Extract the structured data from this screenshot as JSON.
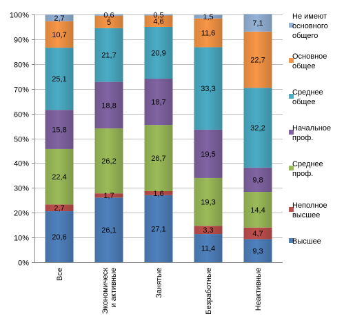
{
  "chart_data": {
    "type": "bar",
    "stacked": true,
    "normalized": true,
    "categories": [
      "Все",
      "Экономическ и активные",
      "Занятые",
      "Безработные",
      "Неактивные"
    ],
    "ylim": [
      0,
      100
    ],
    "yticks": [
      "0%",
      "10%",
      "20%",
      "30%",
      "40%",
      "50%",
      "60%",
      "70%",
      "80%",
      "90%",
      "100%"
    ],
    "legend_position": "right",
    "series": [
      {
        "name": "Высшее",
        "color": "#4f81bd",
        "values": [
          20.6,
          26.1,
          27.1,
          11.4,
          9.3
        ],
        "labels": [
          "20,6",
          "26,1",
          "27,1",
          "11,4",
          "9,3"
        ]
      },
      {
        "name": "Неполное высшее",
        "color": "#c0504d",
        "values": [
          2.7,
          1.7,
          1.6,
          3.3,
          4.7
        ],
        "labels": [
          "2,7",
          "1,7",
          "1,6",
          "3,3",
          "4,7"
        ]
      },
      {
        "name": "Среднее проф.",
        "color": "#9bbb59",
        "values": [
          22.4,
          26.2,
          26.7,
          19.3,
          14.4
        ],
        "labels": [
          "22,4",
          "26,2",
          "26,7",
          "19,3",
          "14,4"
        ]
      },
      {
        "name": "Начальное проф.",
        "color": "#8064a2",
        "values": [
          15.8,
          18.8,
          18.7,
          19.5,
          9.8
        ],
        "labels": [
          "15,8",
          "18,8",
          "18,7",
          "19,5",
          "9,8"
        ]
      },
      {
        "name": "Среднее общее",
        "color": "#4bacc6",
        "values": [
          25.1,
          21.7,
          20.9,
          33.3,
          32.2
        ],
        "labels": [
          "25,1",
          "21,7",
          "20,9",
          "33,3",
          "32,2"
        ]
      },
      {
        "name": "Основное общее",
        "color": "#f79646",
        "values": [
          10.7,
          5,
          4.6,
          11.6,
          22.7
        ],
        "labels": [
          "10,7",
          "5",
          "4,6",
          "11,6",
          "22,7"
        ]
      },
      {
        "name": "Не имеют основного общего",
        "color": "#95b3d7",
        "values": [
          2.7,
          0.6,
          0.5,
          1.5,
          7.1
        ],
        "labels": [
          "2,7",
          "0,6",
          "0,5",
          "1,5",
          "7,1"
        ]
      }
    ]
  }
}
